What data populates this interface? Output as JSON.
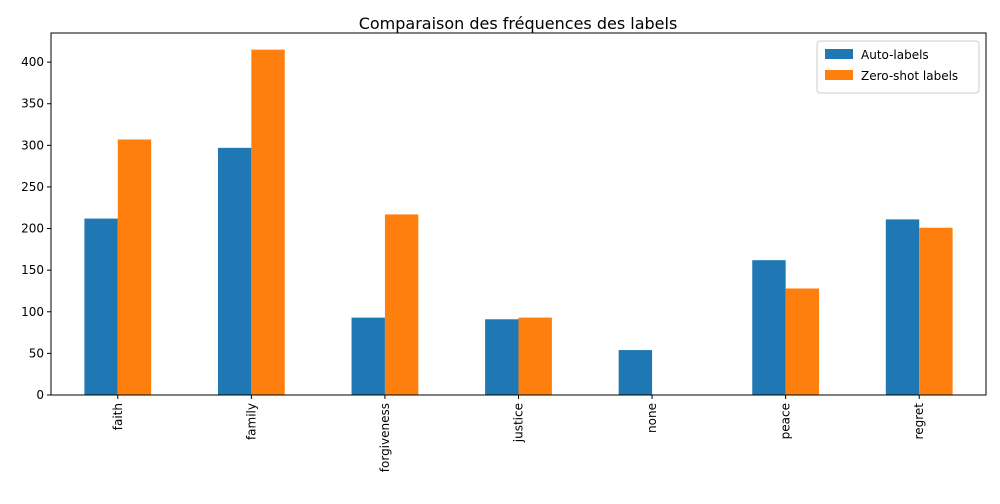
{
  "chart_data": {
    "type": "bar",
    "title": "Comparaison des fréquences des labels",
    "xlabel": "",
    "ylabel": "",
    "categories": [
      "faith",
      "family",
      "forgiveness",
      "justice",
      "none",
      "peace",
      "regret"
    ],
    "series": [
      {
        "name": "Auto-labels",
        "color": "#1f77b4",
        "values": [
          212,
          297,
          93,
          91,
          54,
          162,
          211
        ]
      },
      {
        "name": "Zero-shot labels",
        "color": "#ff7f0e",
        "values": [
          307,
          415,
          217,
          93,
          0,
          128,
          201
        ]
      }
    ],
    "ylim": [
      0,
      435
    ],
    "yticks": [
      0,
      50,
      100,
      150,
      200,
      250,
      300,
      350,
      400
    ],
    "grid": false,
    "legend_position": "top-right",
    "xtick_rotation": "vertical"
  }
}
